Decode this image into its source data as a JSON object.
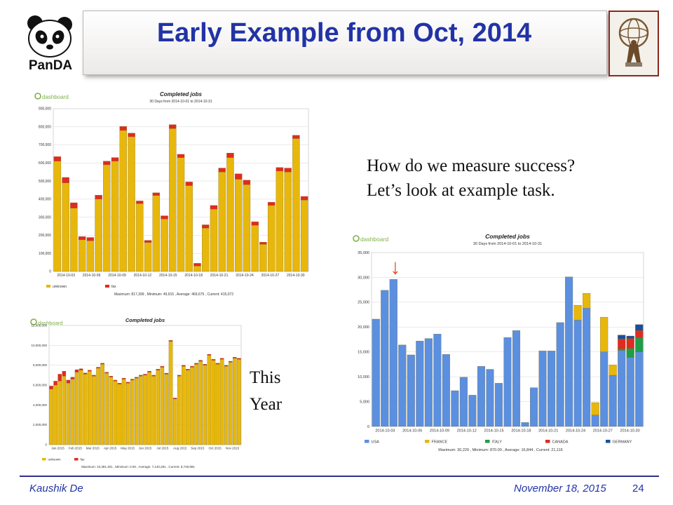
{
  "slide": {
    "title": "Early Example from Oct, 2014",
    "question_line1": "How do we measure success?",
    "question_line2": "Let’s look at example task.",
    "this_year_1": "This",
    "this_year_2": "Year",
    "footer_author": "Kaushik De",
    "footer_date": "November 18, 2015",
    "page_number": "24",
    "logo_text": "PanDA",
    "title_color": "#2233a6"
  },
  "chart_data": [
    {
      "type": "bar",
      "stacked": true,
      "title": "Completed jobs",
      "subtitle": "30 Days from 2014-10-01 to 2014-10-31",
      "brand": "dashboard",
      "ylim": [
        0,
        900000
      ],
      "yticks": [
        "0",
        "100,000",
        "200,000",
        "300,000",
        "400,000",
        "500,000",
        "600,000",
        "700,000",
        "800,000",
        "900,000"
      ],
      "xtick_labels": [
        "2014-10-03",
        "2014-10-06",
        "2014-10-09",
        "2014-10-12",
        "2014-10-15",
        "2014-10-18",
        "2014-10-21",
        "2014-10-24",
        "2014-10-27",
        "2014-10-30"
      ],
      "series": [
        {
          "name": "unknown",
          "color": "#e7b70c",
          "values": [
            610000,
            490000,
            350000,
            175000,
            170000,
            400000,
            590000,
            610000,
            780000,
            745000,
            375000,
            160000,
            420000,
            290000,
            790000,
            630000,
            475000,
            30000,
            240000,
            345000,
            550000,
            630000,
            510000,
            480000,
            255000,
            150000,
            365000,
            555000,
            550000,
            735000,
            395000
          ]
        },
        {
          "name": "fax",
          "color": "#e02b1f",
          "values": [
            25000,
            30000,
            30000,
            18000,
            18000,
            22000,
            20000,
            20000,
            22000,
            20000,
            15000,
            12000,
            15000,
            18000,
            22000,
            18000,
            20000,
            15000,
            18000,
            20000,
            22000,
            25000,
            30000,
            25000,
            20000,
            12000,
            18000,
            20000,
            22000,
            18000,
            20000
          ]
        }
      ],
      "footer": "Maximum: 817,399 , Minimum: 49,915 , Average: 469,675 , Current: 415,072"
    },
    {
      "type": "bar",
      "stacked": true,
      "title": "Completed jobs",
      "subtitle": "45 Weeks from Week 00 of 2015 to Week 46 of 2015",
      "brand": "dashboard",
      "ylim": [
        0,
        12000000
      ],
      "yticks": [
        "0",
        "2,000,000",
        "4,000,000",
        "6,000,000",
        "8,000,000",
        "10,000,000",
        "12,000,000"
      ],
      "xtick_labels": [
        "Jan 2015",
        "Feb 2015",
        "Mar 2015",
        "Apr 2015",
        "May 2015",
        "Jun 2015",
        "Jul 2015",
        "Aug 2015",
        "Sep 2015",
        "Oct 2015",
        "Nov 2015"
      ],
      "series": [
        {
          "name": "unknown",
          "color": "#e7b70c",
          "values": [
            5600000,
            6000000,
            6400000,
            6900000,
            6200000,
            6600000,
            7300000,
            7500000,
            7100000,
            7400000,
            6900000,
            7700000,
            8100000,
            7200000,
            6800000,
            6400000,
            6100000,
            6600000,
            6200000,
            6500000,
            6700000,
            6900000,
            7000000,
            7300000,
            6900000,
            7500000,
            7800000,
            7100000,
            10400000,
            4600000,
            6900000,
            7900000,
            7500000,
            7800000,
            8100000,
            8400000,
            8000000,
            9000000,
            8500000,
            8100000,
            8600000,
            7900000,
            8300000,
            8700000,
            8600000
          ]
        },
        {
          "name": "fax",
          "color": "#e02b1f",
          "values": [
            300000,
            400000,
            700000,
            500000,
            300000,
            200000,
            250000,
            150000,
            120000,
            100000,
            100000,
            100000,
            100000,
            100000,
            100000,
            100000,
            100000,
            100000,
            100000,
            100000,
            100000,
            100000,
            100000,
            100000,
            100000,
            100000,
            100000,
            100000,
            100000,
            100000,
            100000,
            100000,
            100000,
            100000,
            100000,
            100000,
            100000,
            100000,
            100000,
            100000,
            100000,
            100000,
            100000,
            100000,
            100000
          ]
        }
      ],
      "footer": "Maximum: 10,391,301 , Minimum: 0.00 , Average: 7,140,281 , Current: 8,749,891"
    },
    {
      "type": "bar",
      "stacked": true,
      "title": "Completed jobs",
      "subtitle": "30 Days from 2014-10-01 to 2014-10-31",
      "brand": "dashboard",
      "ylim": [
        0,
        35000
      ],
      "yticks": [
        "0",
        "5,000",
        "10,000",
        "15,000",
        "20,000",
        "25,000",
        "30,000",
        "35,000"
      ],
      "xtick_labels": [
        "2014-10-03",
        "2014-10-06",
        "2014-10-09",
        "2014-10-12",
        "2014-10-15",
        "2014-10-18",
        "2014-10-21",
        "2014-10-24",
        "2014-10-27",
        "2014-10-30"
      ],
      "series": [
        {
          "name": "USA",
          "color": "#5b8fe0",
          "values": [
            21600,
            27400,
            29600,
            16400,
            14400,
            17200,
            17700,
            18600,
            14500,
            7200,
            9900,
            6300,
            12100,
            11500,
            8700,
            17900,
            19300,
            800,
            7800,
            15200,
            15200,
            20900,
            30100,
            21400,
            23800,
            2300,
            15000,
            10300,
            15300,
            13900,
            15000
          ]
        },
        {
          "name": "FRANCE",
          "color": "#e7b70c",
          "values": [
            0,
            0,
            0,
            0,
            0,
            0,
            0,
            0,
            0,
            0,
            0,
            0,
            0,
            0,
            0,
            0,
            0,
            0,
            0,
            0,
            0,
            0,
            0,
            3000,
            3000,
            2500,
            7000,
            2100,
            0,
            0,
            0
          ]
        },
        {
          "name": "ITALY",
          "color": "#1e9e4a",
          "values": [
            0,
            0,
            0,
            0,
            0,
            0,
            0,
            0,
            0,
            0,
            0,
            0,
            0,
            0,
            0,
            0,
            0,
            0,
            0,
            0,
            0,
            0,
            0,
            0,
            0,
            0,
            0,
            0,
            300,
            1800,
            2800
          ]
        },
        {
          "name": "CANADA",
          "color": "#e02b1f",
          "values": [
            0,
            0,
            0,
            0,
            0,
            0,
            0,
            0,
            0,
            0,
            0,
            0,
            0,
            0,
            0,
            0,
            0,
            0,
            0,
            0,
            0,
            0,
            0,
            0,
            0,
            0,
            0,
            0,
            2000,
            2000,
            1500
          ]
        },
        {
          "name": "GERMANY",
          "color": "#1a4f9a",
          "values": [
            0,
            0,
            0,
            0,
            0,
            0,
            0,
            0,
            0,
            0,
            0,
            0,
            0,
            0,
            0,
            0,
            0,
            0,
            0,
            0,
            0,
            0,
            0,
            0,
            0,
            0,
            0,
            0,
            800,
            500,
            1200
          ]
        }
      ],
      "annotation": "↓",
      "annotation_color": "#e94a12",
      "annotation_index": 2,
      "footer": "Maximum: 30,229 , Minimum: 870.00 , Average: 16,844 , Current: 21,116"
    }
  ]
}
